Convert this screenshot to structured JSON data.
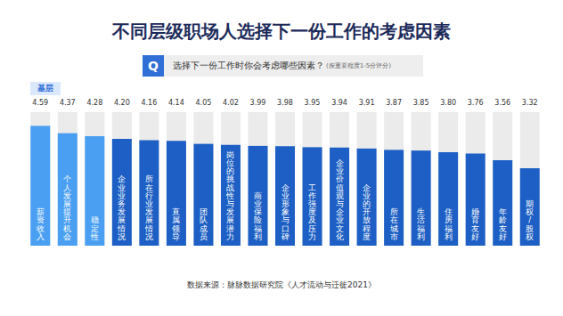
{
  "chart_data": {
    "type": "bar",
    "title": "不同层级职场人选择下一份工作的考虑因素",
    "subtitle": "选择下一份工作时你会考虑哪些因素？",
    "annotations": [
      "Q",
      "(按重要程度1-5分评分)",
      "数据来源：脉脉数据研究院《人才流动与迁徙2021》"
    ],
    "categories": [
      "薪资收入",
      "个人发展提升机会",
      "稳定性",
      "企业业务发展情况",
      "所在行业发展情况",
      "直属领导",
      "团队成员",
      "岗位的挑战性与发展潜力",
      "商业保险福利",
      "企业形象与口碑",
      "工作强度及压力",
      "企业价值观与企业文化",
      "企业的开放程度",
      "所在城市",
      "生活福利",
      "住房福利",
      "婚育友好",
      "年龄友好",
      "期权/股权"
    ],
    "series": [
      {
        "name": "基层",
        "values": [
          4.59,
          4.37,
          4.28,
          4.2,
          4.16,
          4.14,
          4.05,
          4.02,
          3.99,
          3.98,
          3.95,
          3.94,
          3.91,
          3.87,
          3.85,
          3.8,
          3.76,
          3.56,
          3.32
        ],
        "value_labels": [
          "4.59",
          "4.37",
          "4.28",
          "4.20",
          "4.16",
          "4.14",
          "4.05",
          "4.02",
          "3.99",
          "3.98",
          "3.95",
          "3.94",
          "3.91",
          "3.87",
          "3.85",
          "3.80",
          "3.76",
          "3.56",
          "3.32"
        ],
        "colors": [
          "#4a9ff2",
          "#4a9ff2",
          "#4a9ff2",
          "#1d5fc4",
          "#1d5fc4",
          "#1d5fc4",
          "#1d5fc4",
          "#1d5fc4",
          "#1d5fc4",
          "#1d5fc4",
          "#1d5fc4",
          "#1d5fc4",
          "#1d5fc4",
          "#1d5fc4",
          "#1d5fc4",
          "#1d5fc4",
          "#1d5fc4",
          "#1d5fc4",
          "#1d5fc4"
        ]
      }
    ],
    "ylim": [
      1,
      5
    ],
    "data_labels": true,
    "tick_labels": false
  }
}
